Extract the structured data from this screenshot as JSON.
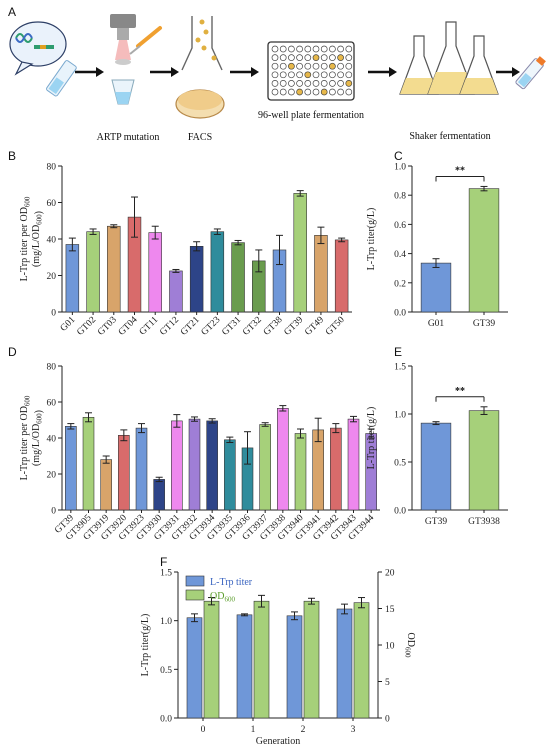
{
  "workflow": {
    "letter": "A",
    "steps": [
      {
        "icon": "speech-bubble-dna-icon",
        "label": ""
      },
      {
        "icon": "artp-instrument-icon",
        "label": "ARTP mutation"
      },
      {
        "icon": "facs-sorter-icon",
        "label": "FACS"
      },
      {
        "icon": "well-plate-icon",
        "label": "96-well plate fermentation"
      },
      {
        "icon": "shake-flasks-icon",
        "label": "Shaker fermentation"
      },
      {
        "icon": "test-tube-icon",
        "label": ""
      }
    ]
  },
  "colors": {
    "blue": "#6f97d8",
    "green": "#a6d07a",
    "tan": "#d8a46a",
    "red": "#d86b6b",
    "pink": "#ee88ee",
    "purple": "#9f7ed6",
    "navy": "#2d4488",
    "teal": "#2f8c9c",
    "darkgreen": "#6a9c4e",
    "orange": "#f08a2a"
  },
  "chart_data": [
    {
      "panel": "B",
      "type": "bar",
      "ylabel": "L-Trp titer per OD600 (mg/L/OD600)",
      "ylim": [
        0,
        80
      ],
      "yticks": [
        0,
        20,
        40,
        60,
        80
      ],
      "categories": [
        "G01",
        "GT02",
        "GT03",
        "GT04",
        "GT11",
        "GT12",
        "GT21",
        "GT23",
        "GT31",
        "GT32",
        "GT38",
        "GT39",
        "GT49",
        "GT50"
      ],
      "values": [
        37,
        44,
        47,
        52,
        43.5,
        22.5,
        36,
        44,
        38,
        28,
        34,
        65,
        42,
        39.5
      ],
      "errors": [
        3.5,
        1.5,
        0.8,
        11,
        3.5,
        0.8,
        2.5,
        1.5,
        1.2,
        6,
        8,
        1.5,
        4.5,
        1
      ],
      "bar_colors": [
        "blue",
        "green",
        "tan",
        "red",
        "pink",
        "purple",
        "navy",
        "teal",
        "darkgreen",
        "darkgreen",
        "blue",
        "green",
        "tan",
        "red"
      ]
    },
    {
      "panel": "C",
      "type": "bar",
      "ylabel": "L-Trp titer(g/L)",
      "ylim": [
        0,
        1.0
      ],
      "yticks": [
        "0.0",
        "0.2",
        "0.4",
        "0.6",
        "0.8",
        "1.0"
      ],
      "categories": [
        "G01",
        "GT39"
      ],
      "values": [
        0.335,
        0.845
      ],
      "errors": [
        0.03,
        0.015
      ],
      "bar_colors": [
        "blue",
        "green"
      ],
      "significance": "**"
    },
    {
      "panel": "D",
      "type": "bar",
      "ylabel": "L-Trp titer per OD600 (mg/L/OD600)",
      "ylim": [
        0,
        80
      ],
      "yticks": [
        0,
        20,
        40,
        60,
        80
      ],
      "categories": [
        "GT39",
        "GT3905",
        "GT3919",
        "GT3920",
        "GT3923",
        "GT3930",
        "GT3931",
        "GT3932",
        "GT3934",
        "GT3935",
        "GT3936",
        "GT3937",
        "GT3938",
        "GT3940",
        "GT3941",
        "GT3942",
        "GT3943",
        "GT3944"
      ],
      "values": [
        46.5,
        51.5,
        28,
        41.5,
        45.5,
        17,
        49.5,
        50.5,
        49.5,
        39,
        34.5,
        47.5,
        56.5,
        42.5,
        44.5,
        45.5,
        50.5,
        42.5
      ],
      "errors": [
        1.5,
        2.5,
        2,
        3,
        2.5,
        1.2,
        3.5,
        1.2,
        1.2,
        1.5,
        9,
        1,
        1.5,
        2.5,
        6.5,
        2.5,
        1.5,
        2.5
      ],
      "bar_colors": [
        "blue",
        "green",
        "tan",
        "red",
        "blue",
        "navy",
        "pink",
        "purple",
        "navy",
        "teal",
        "teal",
        "green",
        "pink",
        "green",
        "tan",
        "red",
        "pink",
        "purple"
      ]
    },
    {
      "panel": "E",
      "type": "bar",
      "ylabel": "L-Trp titer(g/L)",
      "ylim": [
        0,
        1.5
      ],
      "yticks": [
        "0.0",
        "0.5",
        "1.0",
        "1.5"
      ],
      "categories": [
        "GT39",
        "GT3938"
      ],
      "values": [
        0.905,
        1.035
      ],
      "errors": [
        0.015,
        0.04
      ],
      "bar_colors": [
        "blue",
        "green"
      ],
      "significance": "**"
    },
    {
      "panel": "F",
      "type": "bar",
      "xlabel": "Generation",
      "ylabel": "L-Trp titer(g/L)",
      "ylabel_right": "OD600",
      "ylim": [
        0,
        1.5
      ],
      "ylim_right": [
        0,
        20
      ],
      "yticks": [
        "0.0",
        "0.5",
        "1.0",
        "1.5"
      ],
      "yticks_right": [
        0,
        5,
        10,
        15,
        20
      ],
      "categories": [
        "0",
        "1",
        "2",
        "3"
      ],
      "series": [
        {
          "name": "L-Trp titer",
          "axis": "left",
          "values": [
            1.03,
            1.06,
            1.05,
            1.12
          ],
          "errors": [
            0.04,
            0.01,
            0.04,
            0.05
          ],
          "color": "blue"
        },
        {
          "name": "OD600",
          "axis": "right",
          "values": [
            16,
            16,
            16,
            15.8
          ],
          "errors": [
            0.5,
            0.8,
            0.4,
            0.7
          ],
          "color": "green"
        }
      ],
      "legend": "top-left"
    }
  ]
}
